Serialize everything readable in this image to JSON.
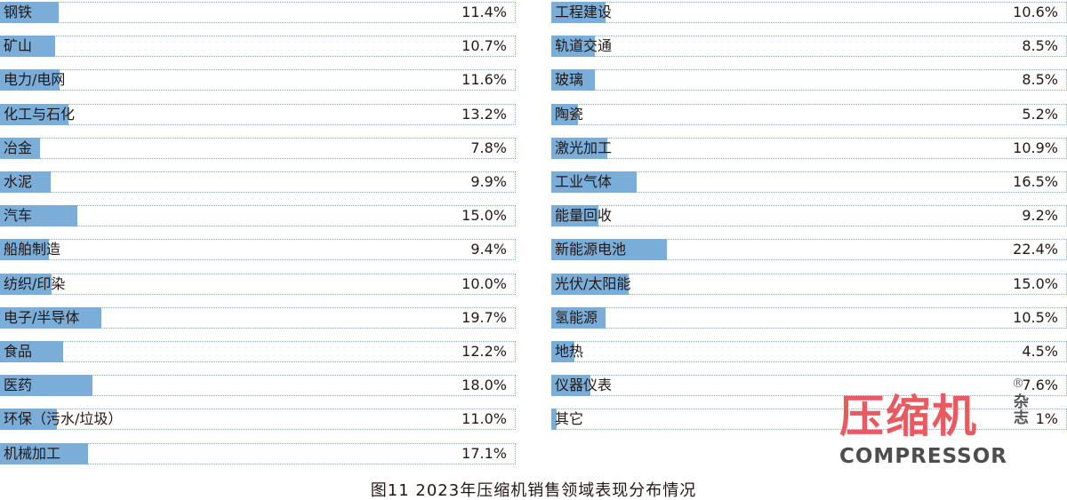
{
  "chart_data": [
    {
      "type": "bar",
      "orientation": "horizontal",
      "xlim": [
        0,
        100
      ],
      "categories": [
        "钢铁",
        "矿山",
        "电力/电网",
        "化工与石化",
        "冶金",
        "水泥",
        "汽车",
        "船舶制造",
        "纺织/印染",
        "电子/半导体",
        "食品",
        "医药",
        "环保（污水/垃圾）",
        "机械加工"
      ],
      "values": [
        11.4,
        10.7,
        11.6,
        13.2,
        7.8,
        9.9,
        15.0,
        9.4,
        10.0,
        19.7,
        12.2,
        18.0,
        11.0,
        17.1
      ],
      "labels": [
        "11.4%",
        "10.7%",
        "11.6%",
        "13.2%",
        "7.8%",
        "9.9%",
        "15.0%",
        "9.4%",
        "10.0%",
        "19.7%",
        "12.2%",
        "18.0%",
        "11.0%",
        "17.1%"
      ]
    },
    {
      "type": "bar",
      "orientation": "horizontal",
      "xlim": [
        0,
        100
      ],
      "categories": [
        "工程建设",
        "轨道交通",
        "玻璃",
        "陶瓷",
        "激光加工",
        "工业气体",
        "能量回收",
        "新能源电池",
        "光伏/太阳能",
        "氢能源",
        "地热",
        "仪器仪表",
        "其它"
      ],
      "values": [
        10.6,
        8.5,
        8.5,
        5.2,
        10.9,
        16.5,
        9.2,
        22.4,
        15.0,
        10.5,
        4.5,
        7.6,
        1.0
      ],
      "labels": [
        "10.6%",
        "8.5%",
        "8.5%",
        "5.2%",
        "10.9%",
        "16.5%",
        "9.2%",
        "22.4%",
        "15.0%",
        "10.5%",
        "4.5%",
        "7.6%",
        "1%"
      ]
    }
  ],
  "caption": "图11 2023年压缩机销售领域表现分布情况",
  "logo": {
    "name_cn": "压缩机",
    "side_text": "杂志",
    "name_en": "COMPRESSOR",
    "registered_mark": "®"
  },
  "colors": {
    "bar_fill": "#7aaed9",
    "track_border": "#7aaad8",
    "text": "#231815",
    "logo_red": "#e85a5f"
  }
}
